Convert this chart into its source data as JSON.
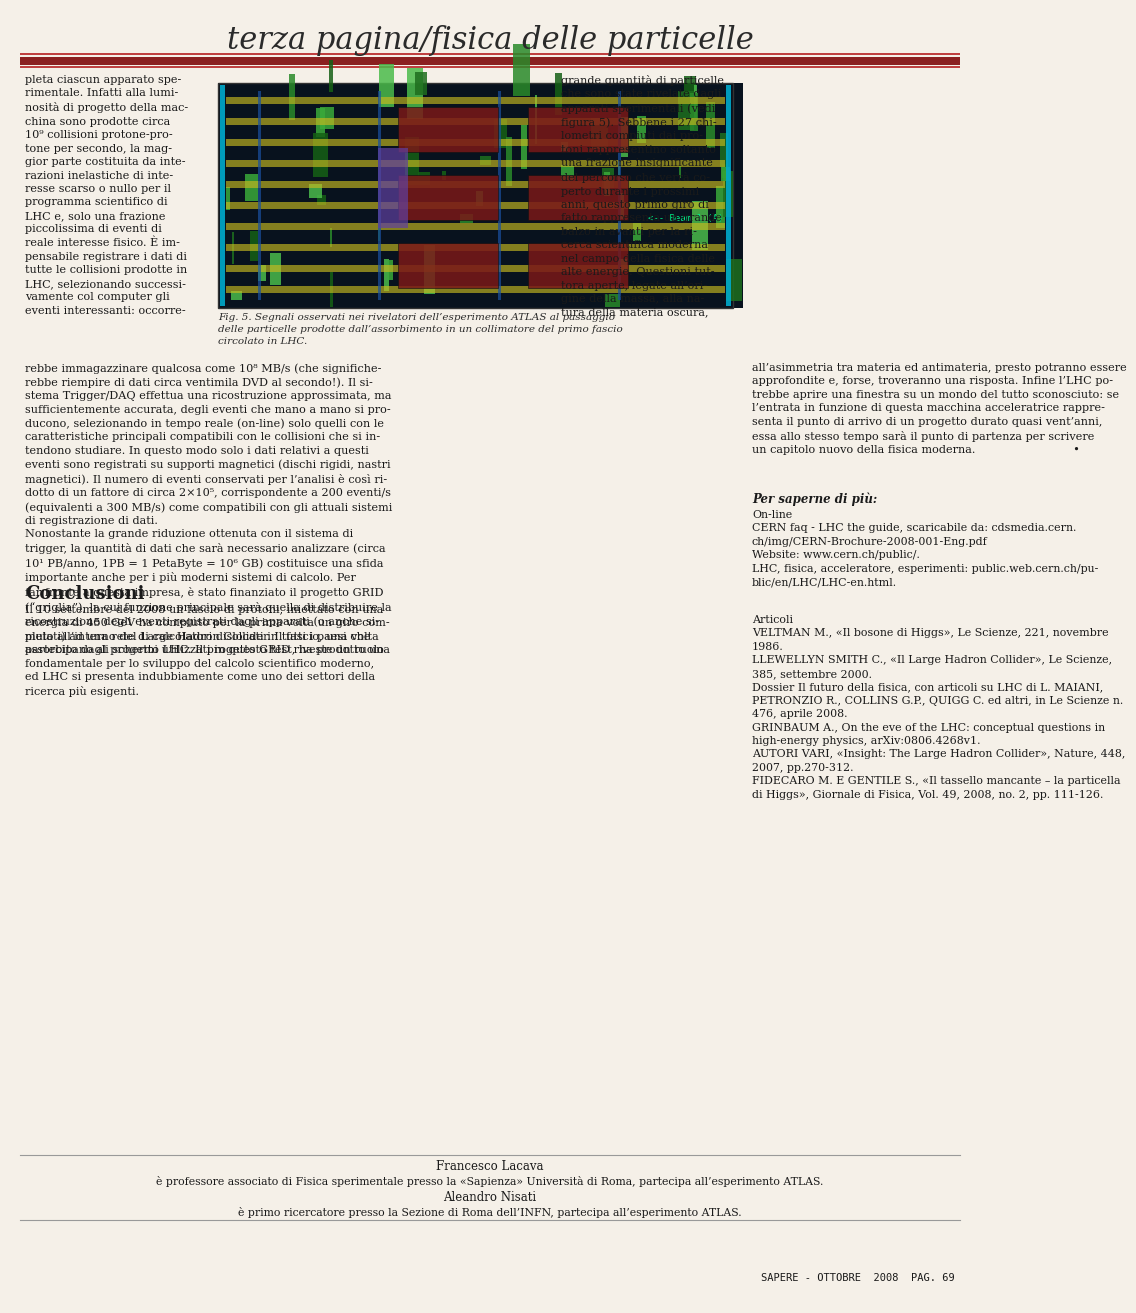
{
  "page_bg": "#f5f0e8",
  "title": "terza pagina/fisica delle particelle",
  "title_font_size": 22,
  "title_color": "#2a2a2a",
  "bar_color_thick": "#8b2020",
  "bar_color_thin": "#c04040",
  "footer_text": "SAPERE - OTTOBRE  2008  PAG. 69",
  "col3_text": "grande quantità di particelle\nche sono state rivelate dagli\napparati sperimentali (vedi\nfigura 5). Sebbene i 27 chi-\nlometri compiuti dai pro-\ntoni rappresentino soltanto\nuna frazione insignificante\ndel percorso che verrà co-\nperto durante i prossimi\nanni, questo primo giro di\nfatto rappresenta un grande\nbalzo in avanti per la ri-\ncerca scientifica moderna\nnel campo della fisica delle\nalte energie. Questioni tut-\ntora aperte, legate all’ori-\ngine della massa, alla na-\ntura della materia oscura,",
  "conclusioni_title": "Conclusioni",
  "per_sapere_title": "Per saperne di più:",
  "author1_name": "Francesco Lacava",
  "author1_desc": "è professore associato di Fisica sperimentale presso la «Sapienza» Università di Roma, partecipa all’esperimento ATLAS.",
  "author2_name": "Aleandro Nisati",
  "author2_desc": "è primo ricercatore presso la Sezione di Roma dell’INFN, partecipa all’esperimento ATLAS.",
  "fig_caption": "Fig. 5. Segnali osservati nei rivelatori dell’esperimento ATLAS al passaggio\ndelle particelle prodotte dall’assorbimento in un collimatore del primo fascio\ncircolato in LHC.",
  "text_color": "#1a1a1a",
  "caption_color": "#2a2a2a",
  "col1_top_lines": [
    "pleta ciascun apparato spe-",
    "rimentale. Infatti alla lumi-",
    "nosità di progetto della mac-",
    "china sono prodotte circa",
    "10⁹ collisioni protone-pro-",
    "tone per secondo, la mag-",
    "gior parte costituita da inte-",
    "razioni inelastiche di inte-",
    "resse scarso o nullo per il",
    "programma scientifico di",
    "LHC e, solo una frazione",
    "piccolissima di eventi di",
    "reale interesse fisico. È im-",
    "pensabile registrare i dati di",
    "tutte le collisioni prodotte in",
    "LHC, selezionando successi-",
    "vamente col computer gli",
    "eventi interessanti: occorre-"
  ],
  "full_left_lines": [
    "rebbe immagazzinare qualcosa come 10⁸ MB/s (che significhe-",
    "rebbe riempire di dati circa ventimila DVD al secondo!). Il si-",
    "stema Trigger/DAQ effettua una ricostruzione approssimata, ma",
    "sufficientemente accurata, degli eventi che mano a mano si pro-",
    "ducono, selezionando in tempo reale (on-line) solo quelli con le",
    "caratteristiche principali compatibili con le collisioni che si in-",
    "tendono studiare. In questo modo solo i dati relativi a questi",
    "eventi sono registrati su supporti magnetici (dischi rigidi, nastri",
    "magnetici). Il numero di eventi conservati per l’analisi è così ri-",
    "dotto di un fattore di circa 2×10⁵, corrispondente a 200 eventi/s",
    "(equivalenti a 300 MB/s) come compatibili con gli attuali sistemi",
    "di registrazione di dati.",
    "Nonostante la grande riduzione ottenuta con il sistema di",
    "trigger, la quantità di dati che sarà necessario analizzare (circa",
    "10¹ PB/anno, 1PB = 1 PetaByte = 10⁶ GB) costituisce una sfida",
    "importante anche per i più moderni sistemi di calcolo. Per",
    "far fronte a questa impresa, è stato finanziato il progetto GRID",
    "(“griglia”), la cui funzione principale sarà quella di distribuire la",
    "ricostruzione degli eventi registrati dagli apparati (o anche si-",
    "mulati) ad una rete di calcolatori dislocati in tutti i paesi che",
    "partecipano al progetto LHC. Il progetto GRID riveste un ruolo",
    "fondamentale per lo sviluppo del calcolo scientifico moderno,",
    "ed LHC si presenta indubbiamente come uno dei settori della",
    "ricerca più esigenti."
  ],
  "right_cont_lines": [
    "all’asimmetria tra materia ed antimateria, presto potranno essere",
    "approfondite e, forse, troveranno una risposta. Infine l’LHC po-",
    "trebbe aprire una finestra su un mondo del tutto sconosciuto: se",
    "l’entrata in funzione di questa macchina acceleratrice rappre-",
    "senta il punto di arrivo di un progetto durato quasi vent’anni,",
    "essa allo stesso tempo sarà il punto di partenza per scrivere",
    "un capitolo nuovo della fisica moderna.                           •"
  ],
  "per_sapere_lines": [
    "On-line",
    "CERN faq - LHC the guide, scaricabile da: cdsmedia.cern.",
    "ch/img/CERN-Brochure-2008-001-Eng.pdf",
    "Website: www.cern.ch/public/.",
    "LHC, fisica, acceleratore, esperimenti: public.web.cern.ch/pu-",
    "blic/en/LHC/LHC-en.html."
  ],
  "articoli_lines": [
    "Articoli",
    "VELTMAN M., «Il bosone di Higgs», Le Scienze, 221, novembre",
    "1986.",
    "LLEWELLYN SMITH C., «Il Large Hadron Collider», Le Scienze,",
    "385, settembre 2000.",
    "Dossier Il futuro della fisica, con articoli su LHC di L. MAIANI,",
    "PETRONZIO R., COLLINS G.P., QUIGG C. ed altri, in Le Scienze n.",
    "476, aprile 2008.",
    "GRINBAUM A., On the eve of the LHC: conceptual questions in",
    "high-energy physics, arXiv:0806.4268v1.",
    "AUTORI VARI, «Insight: The Large Hadron Collider», Nature, 448,",
    "2007, pp.270-312.",
    "FIDECARO M. E GENTILE S., «Il tassello mancante – la particella",
    "di Higgs», Giornale di Fisica, Vol. 49, 2008, no. 2, pp. 111-126."
  ],
  "conc_lines": [
    "Il 10 settembre del 2008 un fascio di protoni, iniettato con una",
    "energia di 450 GeV ha compiuto per la prima volta un giro com-",
    "pleto all’interno del Large Hadron Collider. Il fascio, una volta",
    "assorbito dagli schermi utilizzati in questo test, ha prodotto una"
  ]
}
